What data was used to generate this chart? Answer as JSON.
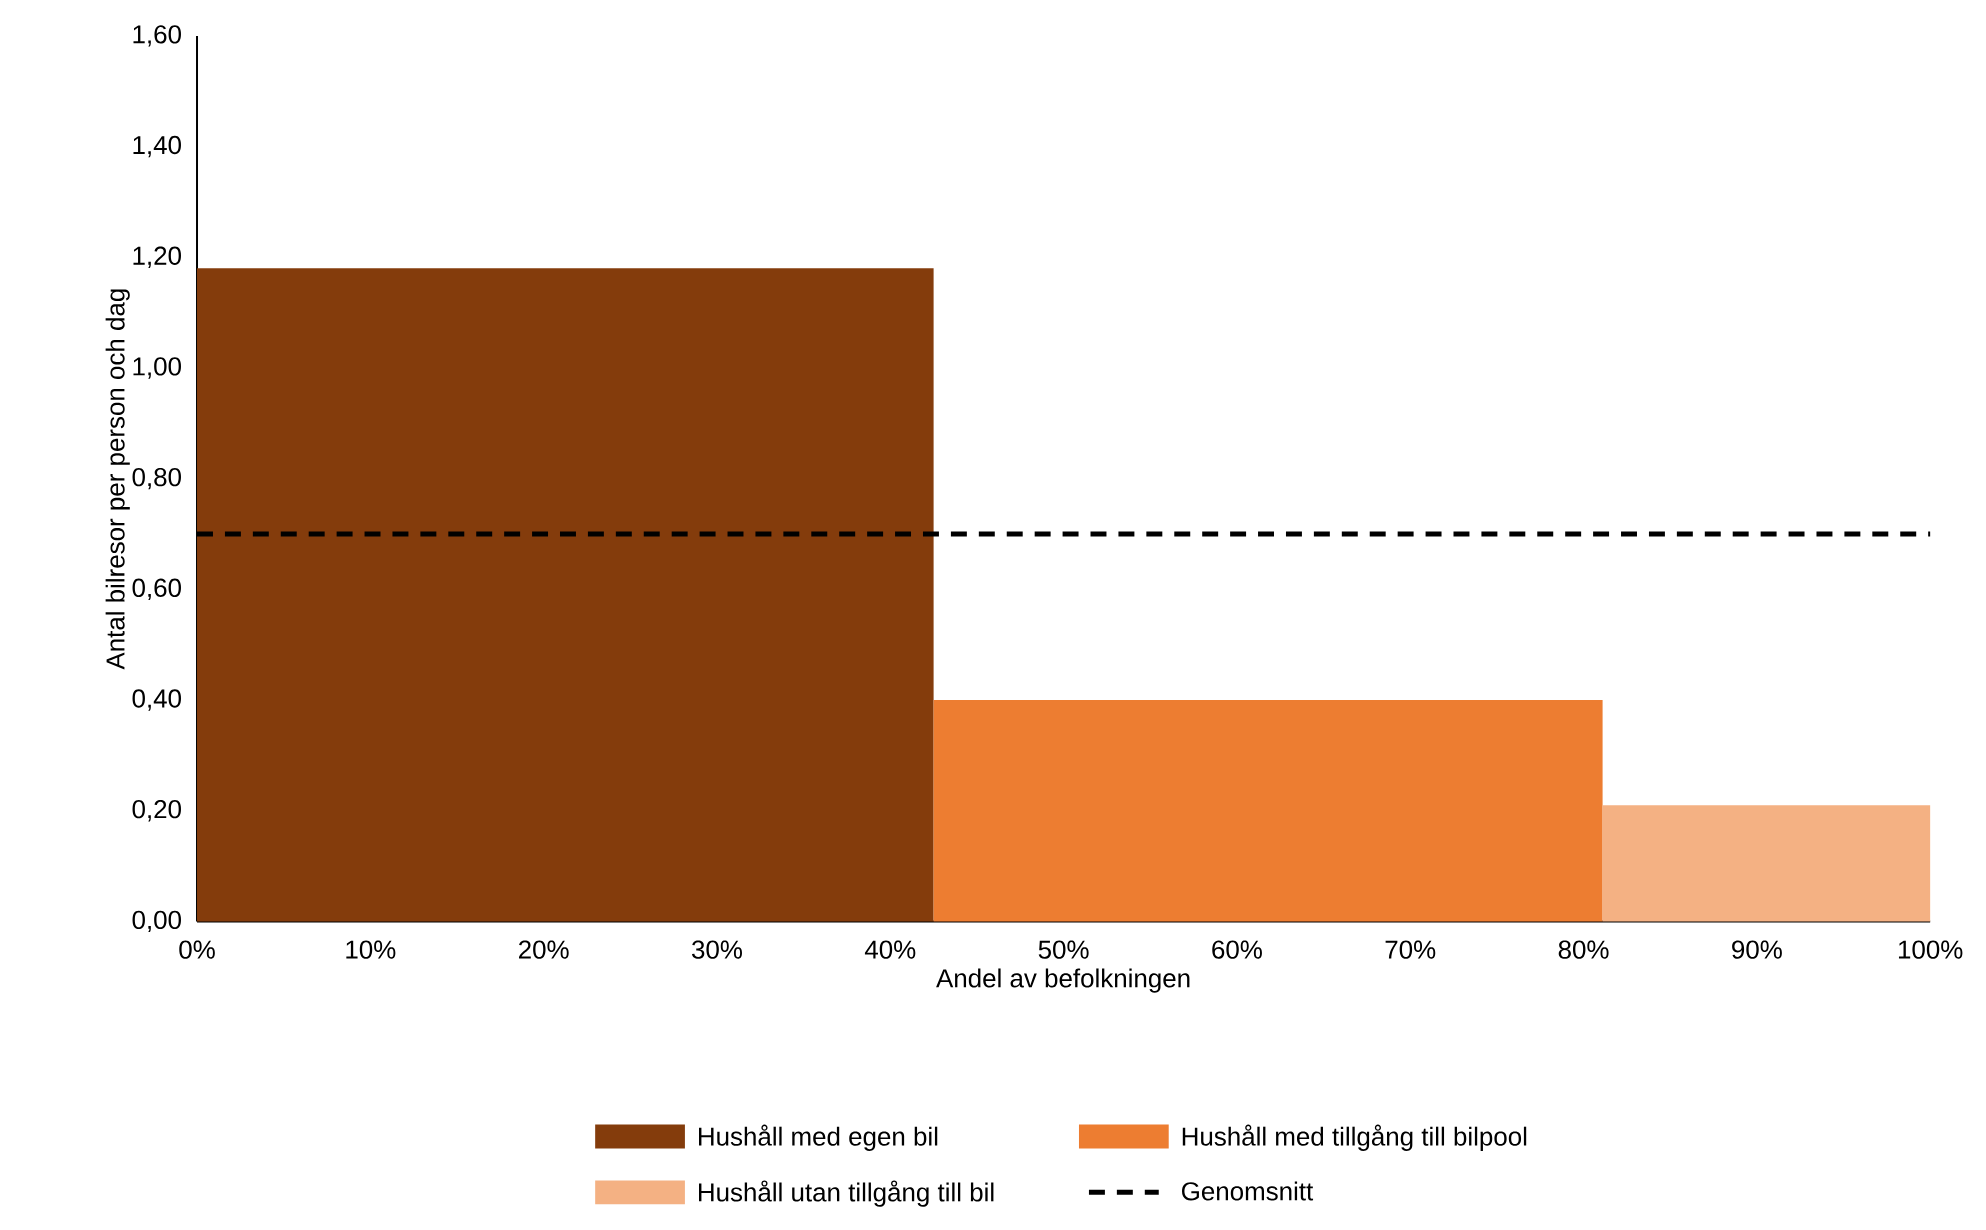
{
  "chart_data": {
    "type": "histogram",
    "xlabel": "Andel av befolkningen",
    "ylabel": "Antal bilresor per person och dag",
    "series": [
      {
        "name": "Hushåll med egen bil",
        "color": "#843c0c",
        "bins": [
          0,
          42.5
        ],
        "values": [
          1.18
        ]
      },
      {
        "name": "Hushåll med tillgång till bilpool",
        "color": "#ed7d31",
        "bins": [
          42.5,
          81.1
        ],
        "values": [
          0.4
        ]
      },
      {
        "name": "Hushåll utan tillgång till bil",
        "color": "#f4b183",
        "bins": [
          81.1,
          100
        ],
        "values": [
          0.21
        ]
      },
      {
        "name": "Genomsnitt",
        "type": "line",
        "color": "#000000",
        "line_style": "dashed",
        "x": [
          0,
          100
        ],
        "values": [
          0.7,
          0.7
        ]
      }
    ],
    "xlim": [
      0,
      100
    ],
    "xticks": [
      {
        "value": 0,
        "label": "0%"
      },
      {
        "value": 10,
        "label": "10%"
      },
      {
        "value": 20,
        "label": "20%"
      },
      {
        "value": 30,
        "label": "30%"
      },
      {
        "value": 40,
        "label": "40%"
      },
      {
        "value": 50,
        "label": "50%"
      },
      {
        "value": 60,
        "label": "60%"
      },
      {
        "value": 70,
        "label": "70%"
      },
      {
        "value": 80,
        "label": "80%"
      },
      {
        "value": 90,
        "label": "90%"
      },
      {
        "value": 100,
        "label": "100%"
      }
    ],
    "ylim": [
      0,
      1.6
    ],
    "yticks": [
      {
        "value": 0,
        "label": "0,00"
      },
      {
        "value": 0.2,
        "label": "0,20"
      },
      {
        "value": 0.4,
        "label": "0,40"
      },
      {
        "value": 0.6,
        "label": "0,60"
      },
      {
        "value": 0.8,
        "label": "0,80"
      },
      {
        "value": 1.0,
        "label": "1,00"
      },
      {
        "value": 1.2,
        "label": "1,20"
      },
      {
        "value": 1.4,
        "label": "1,40"
      },
      {
        "value": 1.6,
        "label": "1,60"
      }
    ],
    "grid": false,
    "legend": "bottom"
  }
}
